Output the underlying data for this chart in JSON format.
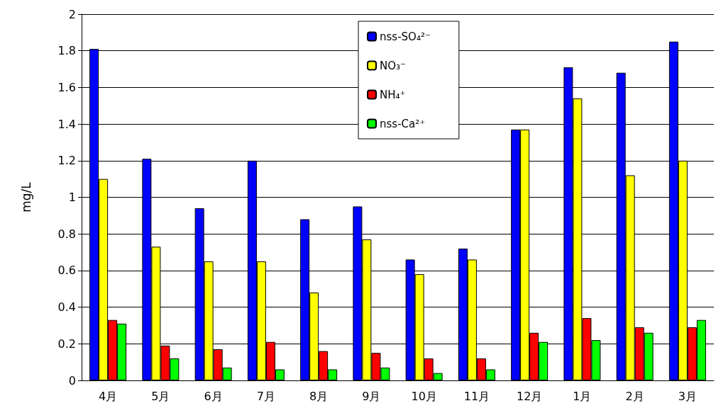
{
  "chart_data": {
    "type": "bar",
    "ylabel": "mg/L",
    "categories": [
      "4月",
      "5月",
      "6月",
      "7月",
      "8月",
      "9月",
      "10月",
      "11月",
      "12月",
      "1月",
      "2月",
      "3月"
    ],
    "series": [
      {
        "name": "nss-SO₄²⁻",
        "color": "#0000ff",
        "values": [
          1.81,
          1.21,
          0.94,
          1.2,
          0.88,
          0.95,
          0.66,
          0.72,
          1.37,
          1.71,
          1.68,
          1.85
        ]
      },
      {
        "name": "NO₃⁻",
        "color": "#ffff00",
        "values": [
          1.1,
          0.73,
          0.65,
          0.65,
          0.48,
          0.77,
          0.58,
          0.66,
          1.37,
          1.54,
          1.12,
          1.2
        ]
      },
      {
        "name": "NH₄⁺",
        "color": "#ff0000",
        "values": [
          0.33,
          0.19,
          0.17,
          0.21,
          0.16,
          0.15,
          0.12,
          0.12,
          0.26,
          0.34,
          0.29,
          0.29
        ]
      },
      {
        "name": "nss-Ca²⁺",
        "color": "#00ff00",
        "values": [
          0.31,
          0.12,
          0.07,
          0.06,
          0.06,
          0.07,
          0.04,
          0.06,
          0.21,
          0.22,
          0.26,
          0.33
        ]
      }
    ],
    "ylim": [
      0,
      2
    ],
    "yticks": [
      0,
      0.2,
      0.4,
      0.6,
      0.8,
      1,
      1.2,
      1.4,
      1.6,
      1.8,
      2
    ],
    "grid": "y",
    "legend": "top"
  }
}
